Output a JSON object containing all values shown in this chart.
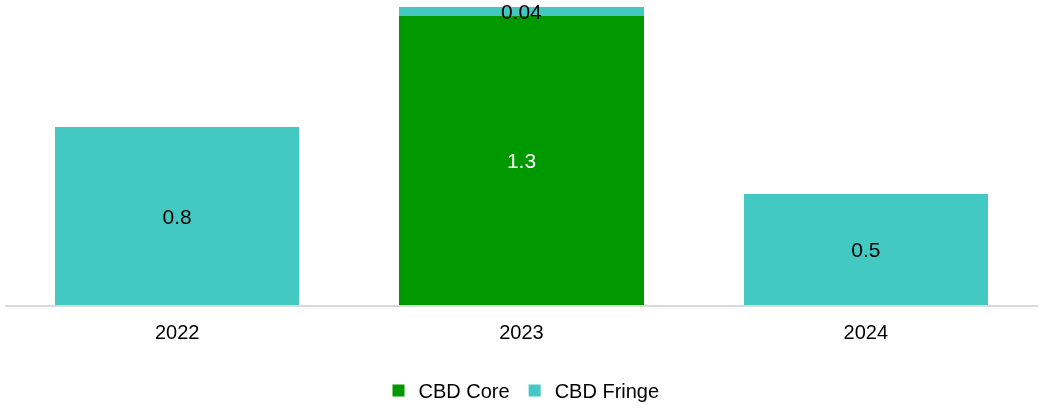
{
  "chart_data": {
    "type": "bar",
    "stacked": true,
    "categories": [
      "2022",
      "2023",
      "2024"
    ],
    "series": [
      {
        "name": "CBD Core",
        "color": "#009900",
        "values": [
          null,
          1.3,
          null
        ]
      },
      {
        "name": "CBD Fringe",
        "color": "#44c9c2",
        "values": [
          0.8,
          0.04,
          0.5
        ]
      }
    ],
    "ylim": [
      0,
      1.35
    ],
    "tick_labels": "x",
    "grid": false,
    "data_labels": true,
    "legend": "bottom"
  }
}
